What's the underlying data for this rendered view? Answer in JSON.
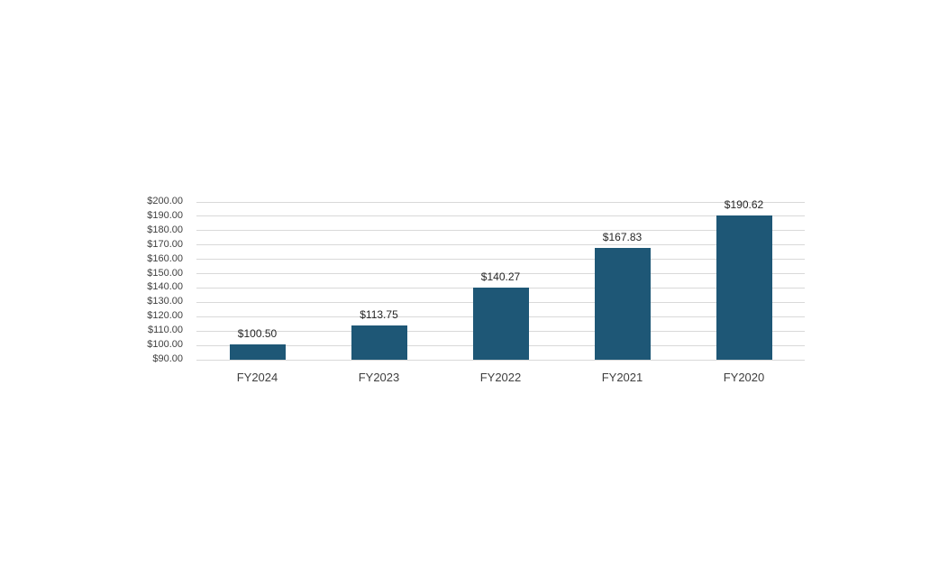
{
  "chart_data": {
    "type": "bar",
    "title": "",
    "xlabel": "",
    "ylabel": "",
    "categories": [
      "FY2024",
      "FY2023",
      "FY2022",
      "FY2021",
      "FY2020"
    ],
    "values": [
      100.5,
      113.75,
      140.27,
      167.83,
      190.62
    ],
    "data_labels": [
      "$100.50",
      "$113.75",
      "$140.27",
      "$167.83",
      "$190.62"
    ],
    "ylim": [
      90,
      200
    ],
    "y_tick_step": 10,
    "y_tick_labels": [
      "$90.00",
      "$100.00",
      "$110.00",
      "$120.00",
      "$130.00",
      "$140.00",
      "$150.00",
      "$160.00",
      "$170.00",
      "$180.00",
      "$190.00",
      "$200.00"
    ],
    "grid": "horizontal",
    "legend": "none",
    "colors": {
      "bar": "#1E5776",
      "gridline": "#D9D9D9",
      "axis_tick_text": "#3F3F3F",
      "data_label_text": "#262626",
      "background": "#FFFFFF"
    }
  }
}
